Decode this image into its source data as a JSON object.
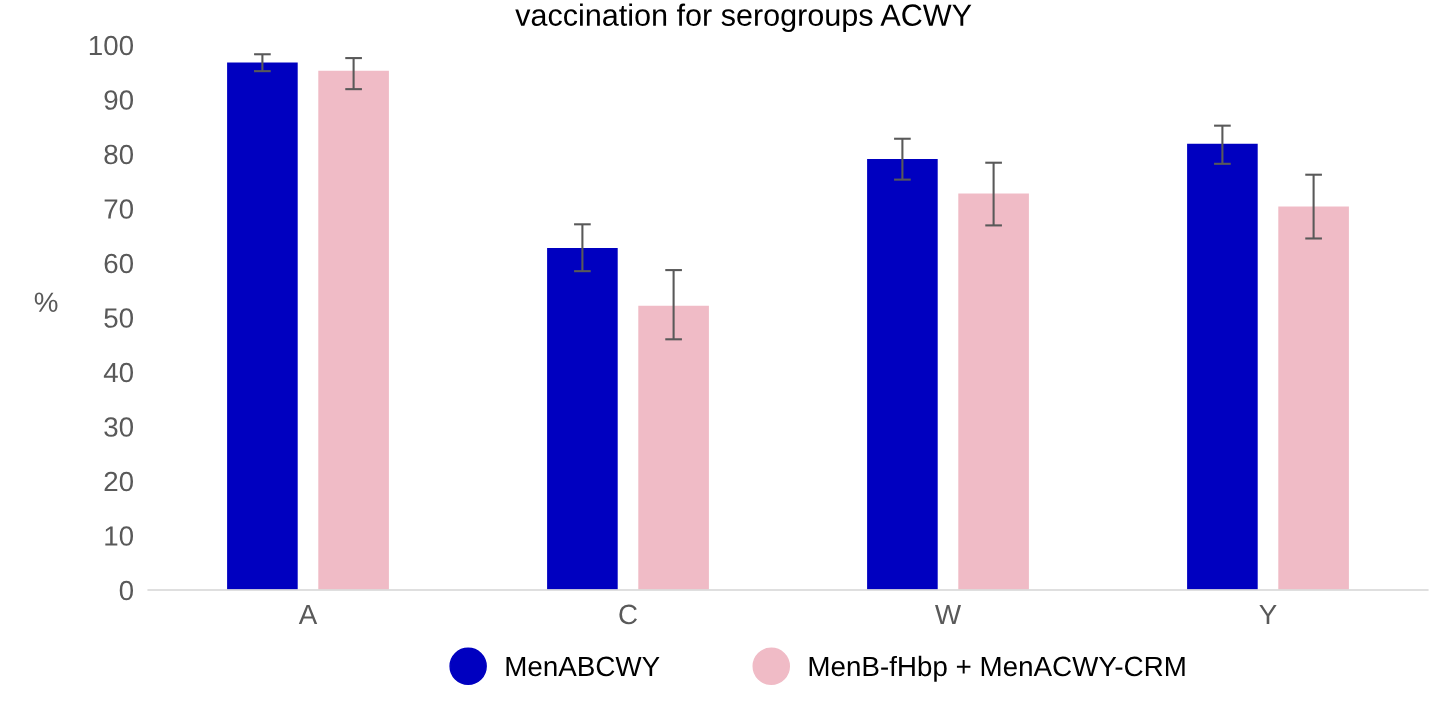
{
  "chart_data": {
    "type": "bar",
    "title": "vaccination for serogroups ACWY",
    "ylabel": "%",
    "categories": [
      "A",
      "C",
      "W",
      "Y"
    ],
    "series": [
      {
        "name": "MenABCWY",
        "color": "#0000c0",
        "values": [
          96.9,
          62.9,
          79.2,
          82.0
        ],
        "errors": [
          [
            95.2,
            98.3
          ],
          [
            58.5,
            67.1
          ],
          [
            75.3,
            82.8
          ],
          [
            78.2,
            85.2
          ]
        ]
      },
      {
        "name": "MenB-fHbp + MenACWY-CRM",
        "color": "#f0bbc6",
        "values": [
          95.4,
          52.3,
          72.9,
          70.5
        ],
        "errors": [
          [
            91.9,
            97.6
          ],
          [
            46.0,
            58.7
          ],
          [
            66.9,
            78.4
          ],
          [
            64.5,
            76.2
          ]
        ]
      }
    ],
    "ylim": [
      0,
      100
    ],
    "yticks": [
      0,
      10,
      20,
      30,
      40,
      50,
      60,
      70,
      80,
      90,
      100
    ],
    "grid": false,
    "legend": "bottom",
    "marker": "circle"
  }
}
